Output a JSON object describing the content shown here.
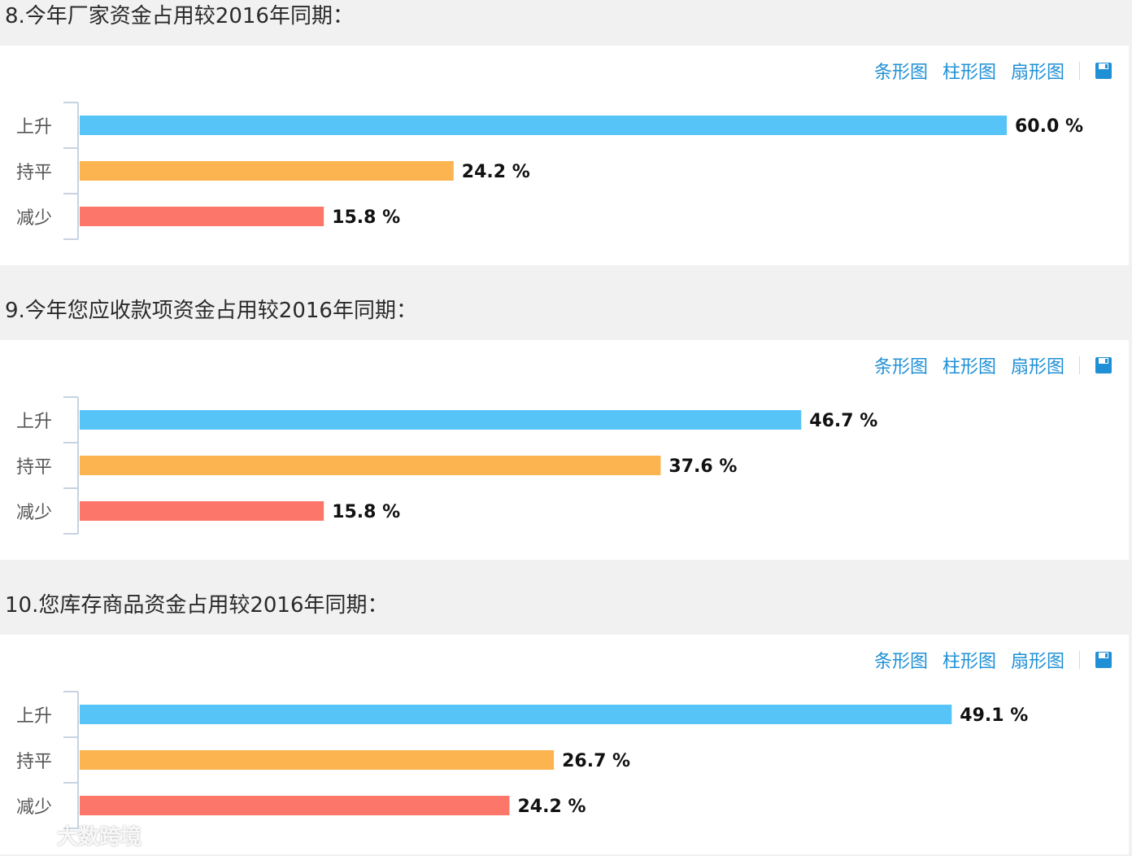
{
  "toolbar": {
    "bar_label": "条形图",
    "column_label": "柱形图",
    "pie_label": "扇形图",
    "save_icon": "save-icon"
  },
  "colors": {
    "rise": "#56c4f7",
    "flat": "#fbb450",
    "fall": "#fc7769",
    "axis": "#c7d3e0",
    "link": "#1f90d6"
  },
  "watermark": {
    "text": "大数跨境"
  },
  "questions": [
    {
      "title": "8.今年厂家资金占用较2016年同期："
    },
    {
      "title": "9.今年您应收款项资金占用较2016年同期："
    },
    {
      "title": "10.您库存商品资金占用较2016年同期："
    }
  ],
  "chart_data": [
    {
      "type": "bar",
      "orientation": "horizontal",
      "categories": [
        "上升",
        "持平",
        "减少"
      ],
      "values": [
        60.0,
        24.2,
        15.8
      ],
      "unit": "%",
      "xlim": [
        0,
        60.0
      ]
    },
    {
      "type": "bar",
      "orientation": "horizontal",
      "categories": [
        "上升",
        "持平",
        "减少"
      ],
      "values": [
        46.7,
        37.6,
        15.8
      ],
      "unit": "%",
      "xlim": [
        0,
        60.0
      ]
    },
    {
      "type": "bar",
      "orientation": "horizontal",
      "categories": [
        "上升",
        "持平",
        "减少"
      ],
      "values": [
        49.1,
        26.7,
        24.2
      ],
      "unit": "%",
      "xlim": [
        0,
        52.2
      ]
    }
  ]
}
